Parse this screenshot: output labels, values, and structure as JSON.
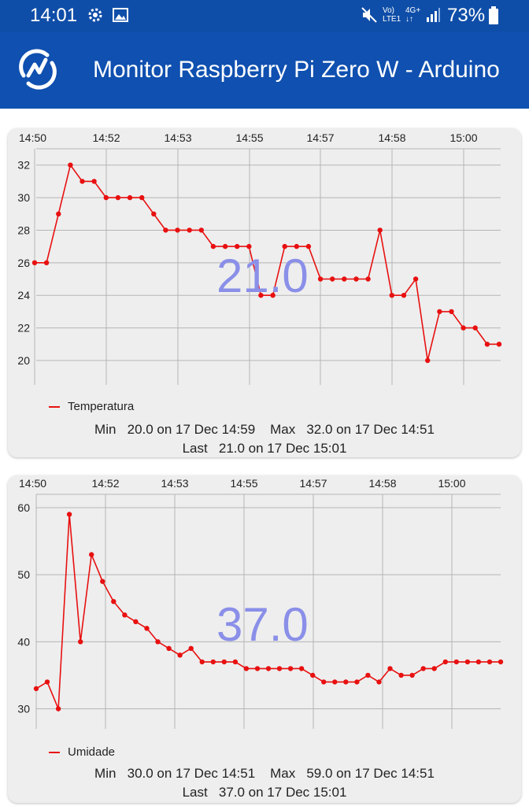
{
  "status_bar": {
    "time": "14:01",
    "icons": [
      "gear-icon",
      "image-icon",
      "mute-icon",
      "volte-icon",
      "4g-icon",
      "signal-icon",
      "battery-icon"
    ],
    "volte_label_1": "Vo)",
    "volte_label_2": "LTE1",
    "network_label": "4G+",
    "battery_percent": "73%"
  },
  "app_bar": {
    "title": "Monitor Raspberry Pi Zero W - Arduino",
    "logo_icon": "gauge-logo-icon",
    "background_color": "#0f50b0"
  },
  "chart_data": [
    {
      "type": "line",
      "series": [
        {
          "name": "Temperatura",
          "color": "#e81010",
          "values": [
            26,
            26,
            29,
            32,
            31,
            31,
            30,
            30,
            30,
            30,
            29,
            28,
            28,
            28,
            28,
            27,
            27,
            27,
            27,
            24,
            24,
            27,
            27,
            27,
            25,
            25,
            25,
            25,
            25,
            28,
            24,
            24,
            25,
            20,
            23,
            23,
            22,
            22,
            21,
            21
          ]
        }
      ],
      "x_tick_labels": [
        "14:50",
        "14:52",
        "14:53",
        "14:55",
        "14:57",
        "14:58",
        "15:00"
      ],
      "y_ticks": [
        20,
        22,
        24,
        26,
        28,
        30,
        32
      ],
      "ylim": [
        18.5,
        33
      ],
      "grid": true,
      "legend_position": "bottom-left",
      "current_value": "21.0",
      "stats_line1": "Min   20.0 on 17 Dec 14:59    Max   32.0 on 17 Dec 14:51",
      "stats_line2": "Last   21.0 on 17 Dec 15:01"
    },
    {
      "type": "line",
      "series": [
        {
          "name": "Umidade",
          "color": "#e81010",
          "values": [
            33,
            34,
            30,
            59,
            40,
            53,
            49,
            46,
            44,
            43,
            42,
            40,
            39,
            38,
            39,
            37,
            37,
            37,
            37,
            36,
            36,
            36,
            36,
            36,
            36,
            35,
            34,
            34,
            34,
            34,
            35,
            34,
            36,
            35,
            35,
            36,
            36,
            37,
            37,
            37,
            37,
            37,
            37
          ]
        }
      ],
      "x_tick_labels": [
        "14:50",
        "14:52",
        "14:53",
        "14:55",
        "14:57",
        "14:58",
        "15:00"
      ],
      "y_ticks": [
        30,
        40,
        50,
        60
      ],
      "ylim": [
        27,
        62
      ],
      "grid": true,
      "legend_position": "bottom-left",
      "current_value": "37.0",
      "stats_line1": "Min   30.0 on 17 Dec 14:51    Max   59.0 on 17 Dec 14:51",
      "stats_line2": "Last   37.0 on 17 Dec 15:01"
    }
  ]
}
